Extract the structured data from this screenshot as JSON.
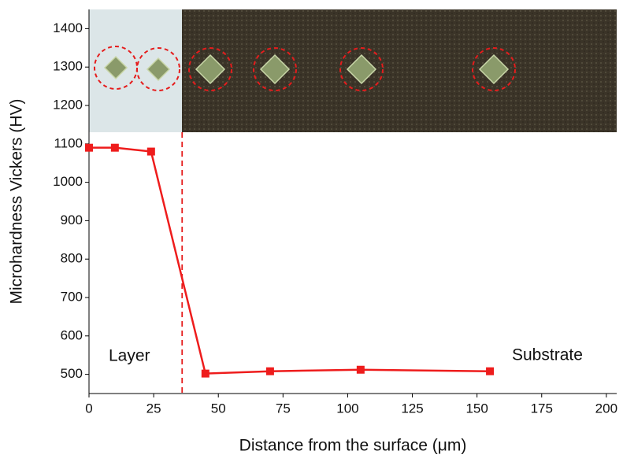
{
  "chart_data": {
    "type": "line",
    "x_label": "Distance from the surface (μm)",
    "y_label": "Microhardness Vickers (HV)",
    "x": [
      0,
      10,
      24,
      45,
      70,
      105,
      155
    ],
    "series": [
      {
        "color": "#ee1c1c",
        "values": [
          1090,
          1090,
          1080,
          502,
          508,
          512,
          508
        ]
      }
    ],
    "xlim": [
      0,
      204
    ],
    "xticks": [
      0,
      25,
      50,
      75,
      100,
      125,
      150,
      175,
      200
    ],
    "ylim": [
      450,
      1450
    ],
    "yticks": [
      500,
      600,
      700,
      800,
      900,
      1000,
      1100,
      1200,
      1300,
      1400
    ],
    "layer_boundary": 36,
    "annotations": [
      "Layer",
      "Substrate"
    ]
  }
}
